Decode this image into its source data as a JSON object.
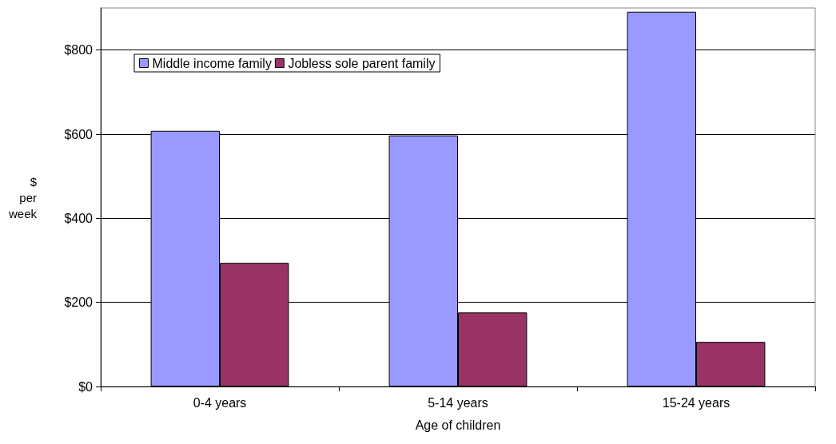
{
  "chart_data": {
    "type": "bar",
    "xlabel": "Age of children",
    "ylabel": "$ per week",
    "categories": [
      "0-4 years",
      "5-14 years",
      "15-24 years"
    ],
    "series": [
      {
        "name": "Middle income family",
        "color": "#9999ff",
        "values": [
          608,
          597,
          891
        ]
      },
      {
        "name": "Jobless sole parent family",
        "color": "#993366",
        "values": [
          294,
          176,
          106
        ]
      }
    ],
    "ylim": [
      0,
      900
    ],
    "yticks": [
      {
        "value": 0,
        "label": "$0"
      },
      {
        "value": 200,
        "label": "$200"
      },
      {
        "value": 400,
        "label": "$400"
      },
      {
        "value": 600,
        "label": "$600"
      },
      {
        "value": 800,
        "label": "$800"
      }
    ],
    "grid": "y",
    "legend": "top left"
  }
}
